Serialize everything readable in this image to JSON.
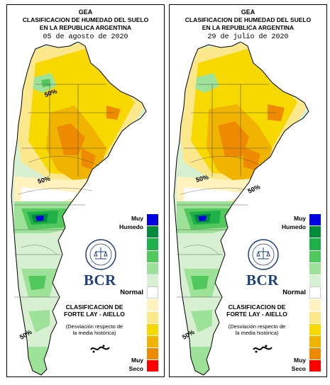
{
  "panels": [
    {
      "org": "GEA",
      "title_line1": "CLASIFICACION DE HUMEDAD DEL SUELO",
      "title_line2": "EN LA REPUBLICA ARGENTINA",
      "date": "05 de agosto de 2020",
      "contour_labels": [
        "50%",
        "50%",
        "50%"
      ]
    },
    {
      "org": "GEA",
      "title_line1": "CLASIFICACION DE HUMEDAD DEL SUELO",
      "title_line2": "EN LA REPUBLICA ARGENTINA",
      "date": "29 de julio de 2020",
      "contour_labels": [
        "50%",
        "50%",
        "50%"
      ]
    }
  ],
  "legend": {
    "top_label_1": "Muy",
    "top_label_2": "Humedo",
    "mid_label": "Normal",
    "bottom_label_1": "Muy",
    "bottom_label_2": "Seco",
    "colors": [
      "#0000e0",
      "#008c3a",
      "#1fb04a",
      "#52c85c",
      "#9ee29a",
      "#d8f0d2",
      "#ffffff",
      "#fff2bf",
      "#fbe88c",
      "#f7d800",
      "#f0b400",
      "#ee8a00",
      "#ff0000"
    ]
  },
  "method": {
    "line1": "CLASIFICACION DE",
    "line2": "FORTE LAY - AIELLO",
    "note1": "(Desviación respecto de",
    "note2": "la media histórica)"
  },
  "brand": {
    "name": "BCR",
    "seal_text": "BOLSA DE COMERCIO DE ROSARIO"
  }
}
